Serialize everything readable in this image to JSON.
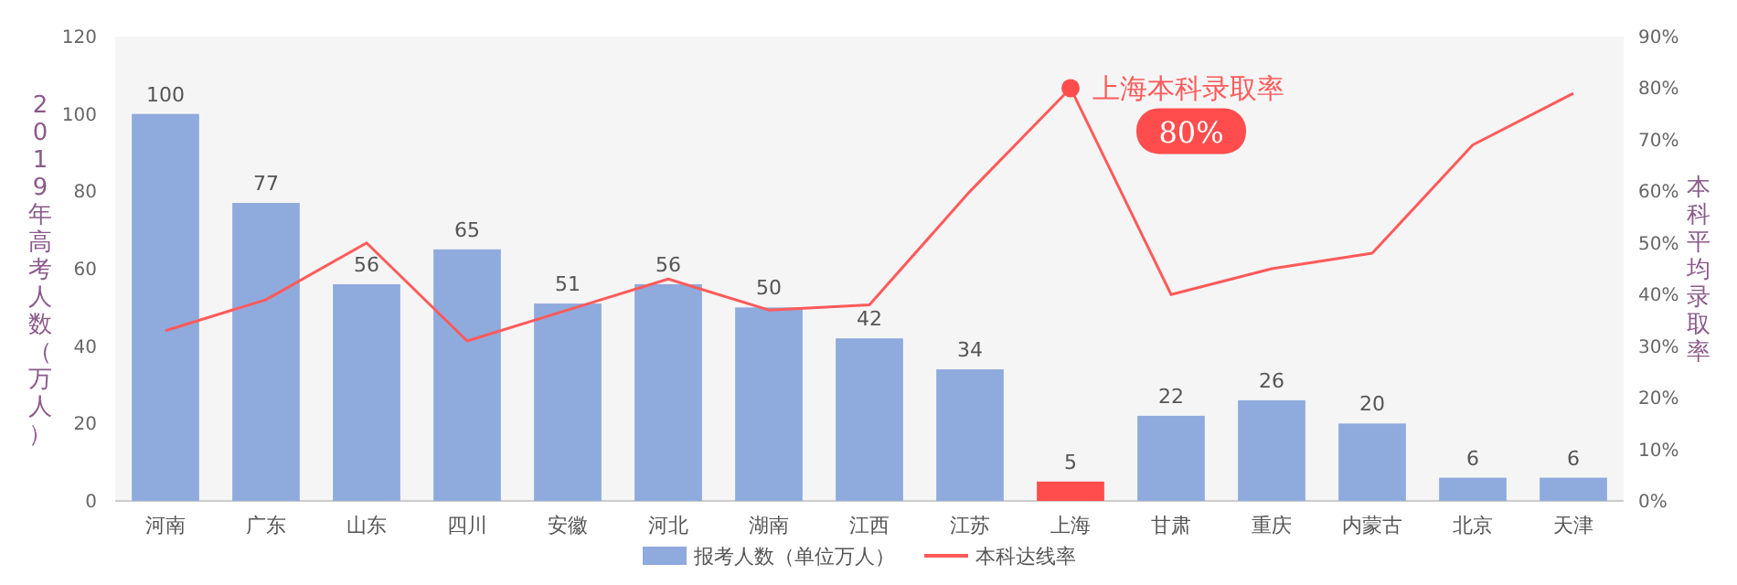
{
  "chart_data": {
    "type": "bar",
    "ylabel": "2019年高考人数（万人）",
    "y2label": "本科平均录取率",
    "categories": [
      "河南",
      "广东",
      "山东",
      "四川",
      "安徽",
      "河北",
      "湖南",
      "江西",
      "江苏",
      "上海",
      "甘肃",
      "重庆",
      "内蒙古",
      "北京",
      "天津"
    ],
    "series": [
      {
        "name": "报考人数（单位万人）",
        "color": "#8faadc",
        "colors": [
          "#8faadc",
          "#8faadc",
          "#8faadc",
          "#8faadc",
          "#8faadc",
          "#8faadc",
          "#8faadc",
          "#8faadc",
          "#8faadc",
          "#ff4d4d",
          "#8faadc",
          "#8faadc",
          "#8faadc",
          "#8faadc",
          "#8faadc"
        ],
        "values": [
          100,
          77,
          56,
          65,
          51,
          56,
          50,
          42,
          34,
          5,
          22,
          26,
          20,
          6,
          6
        ],
        "data_labels": true
      },
      {
        "name": "本科达线率",
        "type": "line",
        "axis": "y2",
        "color": "#ff5a5a",
        "values": [
          33,
          39,
          50,
          31,
          37,
          43,
          37,
          38,
          60,
          80,
          40,
          45,
          48,
          69,
          79
        ]
      }
    ],
    "ylim": [
      0,
      120
    ],
    "yticks": [
      0,
      20,
      40,
      60,
      80,
      100,
      120
    ],
    "y2lim": [
      0,
      90
    ],
    "y2ticks": [
      {
        "value": 0,
        "label": "0%"
      },
      {
        "value": 10,
        "label": "10%"
      },
      {
        "value": 20,
        "label": "20%"
      },
      {
        "value": 30,
        "label": "30%"
      },
      {
        "value": 40,
        "label": "40%"
      },
      {
        "value": 50,
        "label": "50%"
      },
      {
        "value": 60,
        "label": "60%"
      },
      {
        "value": 70,
        "label": "70%"
      },
      {
        "value": 80,
        "label": "80%"
      },
      {
        "value": 90,
        "label": "90%"
      }
    ],
    "annotations": [
      "上海本科录取率",
      "80%"
    ],
    "grid": false,
    "legend": "bottom",
    "marker": "none"
  }
}
